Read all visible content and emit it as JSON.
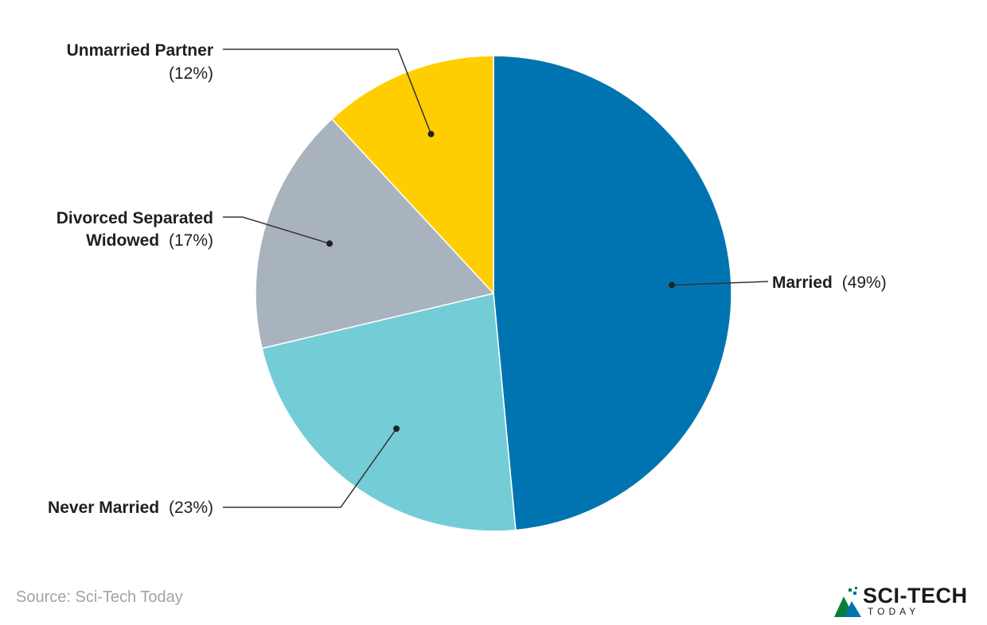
{
  "chart_data": {
    "type": "pie",
    "slices": [
      {
        "label": "Married",
        "pct_text": "(49%)",
        "value": 49,
        "color": "#0074B0"
      },
      {
        "label": "Never Married",
        "pct_text": "(23%)",
        "value": 23,
        "color": "#74CDD6"
      },
      {
        "label": "Divorced Separated Widowed",
        "line1": "Divorced Separated",
        "line2": "Widowed",
        "pct_text": "(17%)",
        "value": 17,
        "color": "#A8B3BE"
      },
      {
        "label": "Unmarried Partner",
        "pct_text": "(12%)",
        "value": 12,
        "color": "#FFCE00"
      }
    ]
  },
  "source": "Source: Sci-Tech Today",
  "logo": {
    "name": "SCI-TECH",
    "sub": "TODAY"
  }
}
